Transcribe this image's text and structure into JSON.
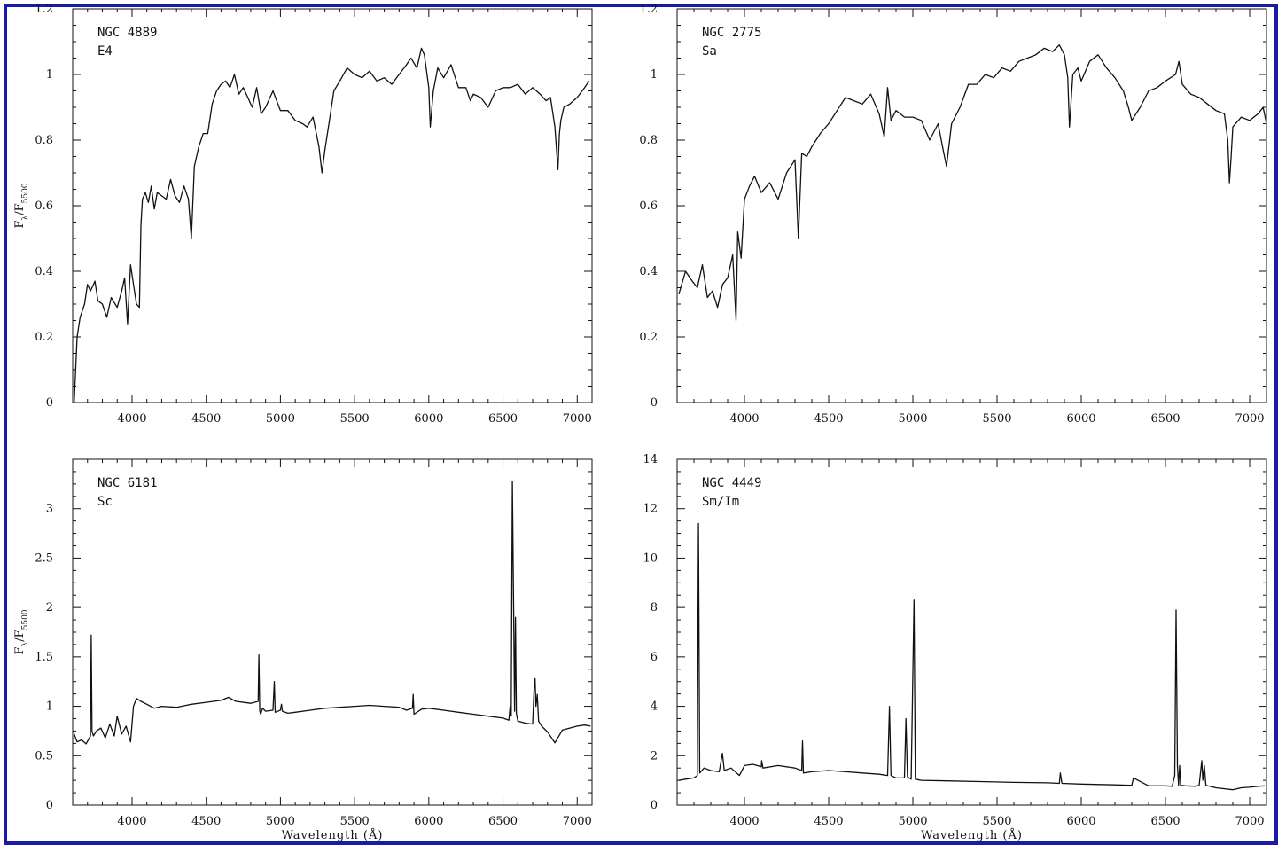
{
  "frame_color": "#1a1aa6",
  "line_color": "#111111",
  "xlabel": "Wavelength  (Å)",
  "ylabel_prefix": "F",
  "ylabel_sub1": "λ",
  "ylabel_mid": "/F",
  "ylabel_sub2": "5500",
  "chart_data": [
    {
      "type": "line",
      "name_label": "NGC 4889",
      "class_label": "E4",
      "xlim": [
        3600,
        7100
      ],
      "ylim": [
        0,
        1.2
      ],
      "xticks": [
        4000,
        4500,
        5000,
        5500,
        6000,
        6500,
        7000
      ],
      "yticks": [
        0,
        0.2,
        0.4,
        0.6,
        0.8,
        1,
        1.2
      ],
      "ytick_labels": [
        "0",
        "0.2",
        "0.4",
        "0.6",
        "0.8",
        "1",
        "1.2"
      ],
      "show_ylabel": true,
      "show_xlabel": false,
      "series": [
        {
          "x": [
            3610,
            3630,
            3650,
            3680,
            3700,
            3720,
            3750,
            3770,
            3800,
            3830,
            3860,
            3900,
            3930,
            3950,
            3970,
            3990,
            4010,
            4030,
            4050,
            4060,
            4070,
            4090,
            4110,
            4130,
            4150,
            4170,
            4200,
            4230,
            4260,
            4290,
            4320,
            4350,
            4380,
            4400,
            4420,
            4450,
            4480,
            4510,
            4540,
            4570,
            4600,
            4630,
            4660,
            4690,
            4720,
            4750,
            4780,
            4810,
            4840,
            4870,
            4900,
            4950,
            5000,
            5050,
            5100,
            5150,
            5180,
            5220,
            5260,
            5280,
            5300,
            5330,
            5360,
            5400,
            5450,
            5500,
            5550,
            5600,
            5650,
            5700,
            5750,
            5800,
            5850,
            5880,
            5920,
            5950,
            5970,
            6000,
            6010,
            6030,
            6060,
            6100,
            6150,
            6200,
            6250,
            6280,
            6300,
            6350,
            6400,
            6450,
            6500,
            6550,
            6600,
            6650,
            6700,
            6750,
            6790,
            6820,
            6850,
            6870,
            6880,
            6890,
            6910,
            6950,
            7000,
            7050,
            7080
          ],
          "y": [
            0.0,
            0.2,
            0.26,
            0.3,
            0.36,
            0.34,
            0.37,
            0.31,
            0.3,
            0.26,
            0.32,
            0.29,
            0.34,
            0.38,
            0.24,
            0.42,
            0.36,
            0.3,
            0.29,
            0.54,
            0.62,
            0.64,
            0.61,
            0.66,
            0.59,
            0.64,
            0.63,
            0.62,
            0.68,
            0.63,
            0.61,
            0.66,
            0.62,
            0.5,
            0.72,
            0.78,
            0.82,
            0.82,
            0.91,
            0.95,
            0.97,
            0.98,
            0.96,
            1.0,
            0.94,
            0.96,
            0.93,
            0.9,
            0.96,
            0.88,
            0.9,
            0.95,
            0.89,
            0.89,
            0.86,
            0.85,
            0.84,
            0.87,
            0.78,
            0.7,
            0.77,
            0.86,
            0.95,
            0.98,
            1.02,
            1.0,
            0.99,
            1.01,
            0.98,
            0.99,
            0.97,
            1.0,
            1.03,
            1.05,
            1.02,
            1.08,
            1.06,
            0.96,
            0.84,
            0.95,
            1.02,
            0.99,
            1.03,
            0.96,
            0.96,
            0.92,
            0.94,
            0.93,
            0.9,
            0.95,
            0.96,
            0.96,
            0.97,
            0.94,
            0.96,
            0.94,
            0.92,
            0.93,
            0.84,
            0.71,
            0.82,
            0.86,
            0.9,
            0.91,
            0.93,
            0.96,
            0.98
          ]
        }
      ]
    },
    {
      "type": "line",
      "name_label": "NGC 2775",
      "class_label": "Sa",
      "xlim": [
        3600,
        7100
      ],
      "ylim": [
        0,
        1.2
      ],
      "xticks": [
        4000,
        4500,
        5000,
        5500,
        6000,
        6500,
        7000
      ],
      "yticks": [
        0,
        0.2,
        0.4,
        0.6,
        0.8,
        1,
        1.2
      ],
      "ytick_labels": [
        "0",
        "0.2",
        "0.4",
        "0.6",
        "0.8",
        "1",
        "1.2"
      ],
      "show_ylabel": false,
      "show_xlabel": false,
      "series": [
        {
          "x": [
            3610,
            3650,
            3690,
            3720,
            3750,
            3780,
            3810,
            3840,
            3870,
            3900,
            3930,
            3950,
            3960,
            3980,
            4000,
            4030,
            4060,
            4100,
            4150,
            4200,
            4250,
            4300,
            4320,
            4340,
            4370,
            4400,
            4450,
            4500,
            4550,
            4600,
            4650,
            4700,
            4750,
            4800,
            4830,
            4850,
            4870,
            4900,
            4950,
            5000,
            5050,
            5100,
            5150,
            5180,
            5200,
            5230,
            5280,
            5330,
            5380,
            5430,
            5480,
            5530,
            5580,
            5630,
            5680,
            5730,
            5780,
            5830,
            5870,
            5900,
            5920,
            5930,
            5950,
            5980,
            6000,
            6050,
            6100,
            6150,
            6200,
            6250,
            6280,
            6300,
            6350,
            6400,
            6450,
            6500,
            6530,
            6560,
            6580,
            6600,
            6650,
            6700,
            6750,
            6800,
            6850,
            6870,
            6880,
            6890,
            6900,
            6950,
            7000,
            7050,
            7080,
            7100
          ],
          "y": [
            0.33,
            0.4,
            0.37,
            0.35,
            0.42,
            0.32,
            0.34,
            0.29,
            0.36,
            0.38,
            0.45,
            0.25,
            0.52,
            0.44,
            0.62,
            0.66,
            0.69,
            0.64,
            0.67,
            0.62,
            0.7,
            0.74,
            0.5,
            0.76,
            0.75,
            0.78,
            0.82,
            0.85,
            0.89,
            0.93,
            0.92,
            0.91,
            0.94,
            0.88,
            0.81,
            0.96,
            0.86,
            0.89,
            0.87,
            0.87,
            0.86,
            0.8,
            0.85,
            0.77,
            0.72,
            0.85,
            0.9,
            0.97,
            0.97,
            1.0,
            0.99,
            1.02,
            1.01,
            1.04,
            1.05,
            1.06,
            1.08,
            1.07,
            1.09,
            1.06,
            0.99,
            0.84,
            1.0,
            1.02,
            0.98,
            1.04,
            1.06,
            1.02,
            0.99,
            0.95,
            0.9,
            0.86,
            0.9,
            0.95,
            0.96,
            0.98,
            0.99,
            1.0,
            1.04,
            0.97,
            0.94,
            0.93,
            0.91,
            0.89,
            0.88,
            0.8,
            0.67,
            0.75,
            0.84,
            0.87,
            0.86,
            0.88,
            0.9,
            0.85
          ]
        }
      ]
    },
    {
      "type": "line",
      "name_label": "NGC 6181",
      "class_label": "Sc",
      "xlim": [
        3600,
        7100
      ],
      "ylim": [
        0,
        3.5
      ],
      "xticks": [
        4000,
        4500,
        5000,
        5500,
        6000,
        6500,
        7000
      ],
      "yticks": [
        0,
        0.5,
        1,
        1.5,
        2,
        2.5,
        3
      ],
      "ytick_labels": [
        "0",
        "0.5",
        "1",
        "1.5",
        "2",
        "2.5",
        "3"
      ],
      "show_ylabel": true,
      "show_xlabel": true,
      "series": [
        {
          "x": [
            3610,
            3630,
            3660,
            3690,
            3720,
            3725,
            3730,
            3740,
            3760,
            3790,
            3820,
            3850,
            3880,
            3900,
            3930,
            3960,
            3990,
            4010,
            4030,
            4060,
            4100,
            4150,
            4200,
            4300,
            4400,
            4500,
            4600,
            4650,
            4700,
            4800,
            4850,
            4855,
            4861,
            4867,
            4880,
            4900,
            4950,
            4959,
            4965,
            5000,
            5007,
            5013,
            5050,
            5100,
            5200,
            5300,
            5400,
            5500,
            5600,
            5700,
            5800,
            5850,
            5890,
            5895,
            5900,
            5950,
            6000,
            6100,
            6200,
            6300,
            6400,
            6500,
            6540,
            6548,
            6555,
            6563,
            6571,
            6578,
            6584,
            6590,
            6600,
            6650,
            6700,
            6710,
            6716,
            6722,
            6731,
            6740,
            6760,
            6800,
            6850,
            6900,
            6950,
            7000,
            7050,
            7090
          ],
          "y": [
            0.72,
            0.64,
            0.66,
            0.62,
            0.7,
            1.72,
            0.75,
            0.7,
            0.75,
            0.78,
            0.68,
            0.82,
            0.7,
            0.9,
            0.72,
            0.8,
            0.64,
            1.0,
            1.08,
            1.05,
            1.02,
            0.98,
            1.0,
            0.99,
            1.02,
            1.04,
            1.06,
            1.09,
            1.05,
            1.03,
            1.05,
            1.52,
            0.95,
            0.92,
            0.98,
            0.95,
            0.96,
            1.25,
            0.94,
            0.96,
            1.02,
            0.95,
            0.93,
            0.94,
            0.96,
            0.98,
            0.99,
            1.0,
            1.01,
            1.0,
            0.99,
            0.96,
            0.98,
            1.12,
            0.92,
            0.97,
            0.98,
            0.96,
            0.94,
            0.92,
            0.9,
            0.88,
            0.86,
            1.0,
            0.9,
            3.28,
            2.1,
            0.95,
            1.9,
            0.93,
            0.85,
            0.83,
            0.82,
            1.2,
            1.28,
            1.0,
            1.12,
            0.85,
            0.8,
            0.74,
            0.63,
            0.76,
            0.78,
            0.8,
            0.81,
            0.8
          ]
        }
      ]
    },
    {
      "type": "line",
      "name_label": "NGC 4449",
      "class_label": "Sm/Im",
      "xlim": [
        3600,
        7100
      ],
      "ylim": [
        0,
        14
      ],
      "xticks": [
        4000,
        4500,
        5000,
        5500,
        6000,
        6500,
        7000
      ],
      "yticks": [
        0,
        2,
        4,
        6,
        8,
        10,
        12,
        14
      ],
      "ytick_labels": [
        "0",
        "2",
        "4",
        "6",
        "8",
        "10",
        "12",
        "14"
      ],
      "show_ylabel": false,
      "show_xlabel": true,
      "series": [
        {
          "x": [
            3610,
            3650,
            3700,
            3720,
            3727,
            3734,
            3760,
            3800,
            3850,
            3869,
            3880,
            3920,
            3970,
            4000,
            4050,
            4100,
            4102,
            4110,
            4200,
            4300,
            4340,
            4345,
            4350,
            4400,
            4500,
            4600,
            4700,
            4800,
            4850,
            4861,
            4870,
            4900,
            4950,
            4959,
            4968,
            4990,
            5007,
            5015,
            5050,
            5200,
            5400,
            5600,
            5800,
            5870,
            5876,
            5885,
            6000,
            6200,
            6300,
            6310,
            6400,
            6500,
            6540,
            6555,
            6563,
            6571,
            6578,
            6584,
            6590,
            6620,
            6680,
            6700,
            6716,
            6722,
            6731,
            6740,
            6800,
            6900,
            6950,
            7000,
            7050,
            7090
          ],
          "y": [
            1.0,
            1.05,
            1.1,
            1.2,
            11.4,
            1.3,
            1.5,
            1.4,
            1.35,
            2.1,
            1.4,
            1.5,
            1.2,
            1.6,
            1.65,
            1.55,
            1.8,
            1.5,
            1.6,
            1.5,
            1.4,
            2.6,
            1.3,
            1.35,
            1.4,
            1.35,
            1.3,
            1.25,
            1.2,
            4.0,
            1.2,
            1.1,
            1.1,
            3.5,
            1.15,
            1.05,
            8.3,
            1.05,
            1.0,
            0.98,
            0.95,
            0.92,
            0.9,
            0.88,
            1.3,
            0.88,
            0.85,
            0.82,
            0.8,
            1.1,
            0.78,
            0.78,
            0.76,
            1.2,
            7.9,
            1.6,
            0.8,
            1.6,
            0.8,
            0.78,
            0.76,
            0.8,
            1.8,
            1.0,
            1.6,
            0.8,
            0.7,
            0.62,
            0.7,
            0.72,
            0.76,
            0.78
          ]
        }
      ]
    }
  ]
}
